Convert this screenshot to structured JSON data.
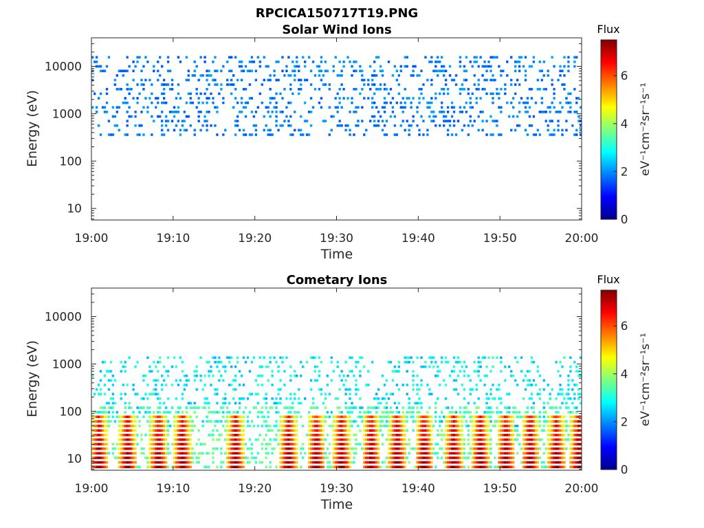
{
  "figure_title": "RPCICA150717T19.PNG",
  "chart_data": [
    {
      "type": "heatmap",
      "title": "Solar Wind Ions",
      "xlabel": "Time",
      "ylabel": "Energy (eV)",
      "x_ticks": [
        "19:00",
        "19:10",
        "19:20",
        "19:30",
        "19:40",
        "19:50",
        "20:00"
      ],
      "y_ticks": [
        "10",
        "100",
        "1000",
        "10000"
      ],
      "y_scale": "log",
      "ylim": [
        5.7,
        40000
      ],
      "xlim": [
        "19:00",
        "20:00"
      ],
      "colorbar": {
        "label": "Flux",
        "units": "eV⁻¹cm⁻²sr⁻¹s⁻¹",
        "ticks": [
          "0",
          "2",
          "4",
          "6"
        ],
        "range": [
          0,
          7.5
        ],
        "colormap": "jet"
      },
      "regions": [
        {
          "description": "scattered counts",
          "energy_range_ev": [
            300,
            17000
          ],
          "time_range": [
            "19:00",
            "20:00"
          ],
          "flux_range": [
            1.5,
            2.2
          ]
        }
      ]
    },
    {
      "type": "heatmap",
      "title": "Cometary Ions",
      "xlabel": "Time",
      "ylabel": "Energy (eV)",
      "x_ticks": [
        "19:00",
        "19:10",
        "19:20",
        "19:30",
        "19:40",
        "19:50",
        "20:00"
      ],
      "y_ticks": [
        "10",
        "100",
        "1000",
        "10000"
      ],
      "y_scale": "log",
      "ylim": [
        5.7,
        40000
      ],
      "xlim": [
        "19:00",
        "20:00"
      ],
      "colorbar": {
        "label": "Flux",
        "units": "eV⁻¹cm⁻²sr⁻¹s⁻¹",
        "ticks": [
          "0",
          "2",
          "4",
          "6"
        ],
        "range": [
          0,
          7.5
        ],
        "colormap": "jet"
      },
      "regions": [
        {
          "description": "scattered counts",
          "energy_range_ev": [
            40,
            1500
          ],
          "time_range": [
            "19:00",
            "20:00"
          ],
          "flux_range": [
            2.2,
            3.3
          ]
        },
        {
          "description": "low-energy bursts",
          "energy_range_ev": [
            5.7,
            130
          ],
          "time_range": [
            "19:00",
            "20:00"
          ],
          "flux_range": [
            3.5,
            7.5
          ]
        }
      ],
      "burst_times_min": [
        0.8,
        4.3,
        8.1,
        11.0,
        17.5,
        24.0,
        27.4,
        30.5,
        34.1,
        37.3,
        40.6,
        44.2,
        47.5,
        50.6,
        53.6,
        56.8,
        59.5
      ]
    }
  ]
}
